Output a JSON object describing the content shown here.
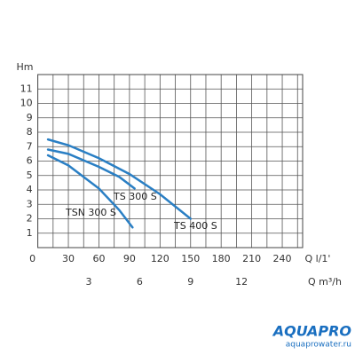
{
  "chart_data": {
    "type": "line",
    "y_label": "Hm",
    "x_label": "Q l/1'",
    "x2_label": "Q m³/h",
    "xlim": [
      0,
      260
    ],
    "xticks": [
      0,
      30,
      60,
      90,
      120,
      150,
      180,
      210,
      240
    ],
    "xgrid": [
      15,
      30,
      45,
      60,
      75,
      90,
      105,
      120,
      135,
      150,
      165,
      180,
      195,
      210,
      225,
      240,
      255
    ],
    "x2lim": [
      0,
      15.6
    ],
    "x2ticks": [
      3,
      6,
      9,
      12
    ],
    "ylim": [
      0,
      12
    ],
    "yticks": [
      1,
      2,
      3,
      4,
      5,
      6,
      7,
      8,
      9,
      10,
      11
    ],
    "grid": true,
    "color": "#2a7fc4",
    "series": [
      {
        "name": "TS 400 S",
        "x": [
          10,
          30,
          60,
          90,
          120,
          150
        ],
        "values": [
          7.5,
          7.1,
          6.2,
          5.1,
          3.7,
          2.0
        ]
      },
      {
        "name": "TS 300 S",
        "x": [
          10,
          30,
          60,
          80,
          95
        ],
        "values": [
          6.8,
          6.5,
          5.6,
          4.9,
          4.1
        ]
      },
      {
        "name": "TSN 300 S",
        "x": [
          10,
          30,
          60,
          80,
          93
        ],
        "values": [
          6.4,
          5.7,
          4.1,
          2.6,
          1.4
        ]
      }
    ]
  },
  "logo": {
    "brand": "AQUAPRO",
    "site": "aquaprowater.ru"
  }
}
